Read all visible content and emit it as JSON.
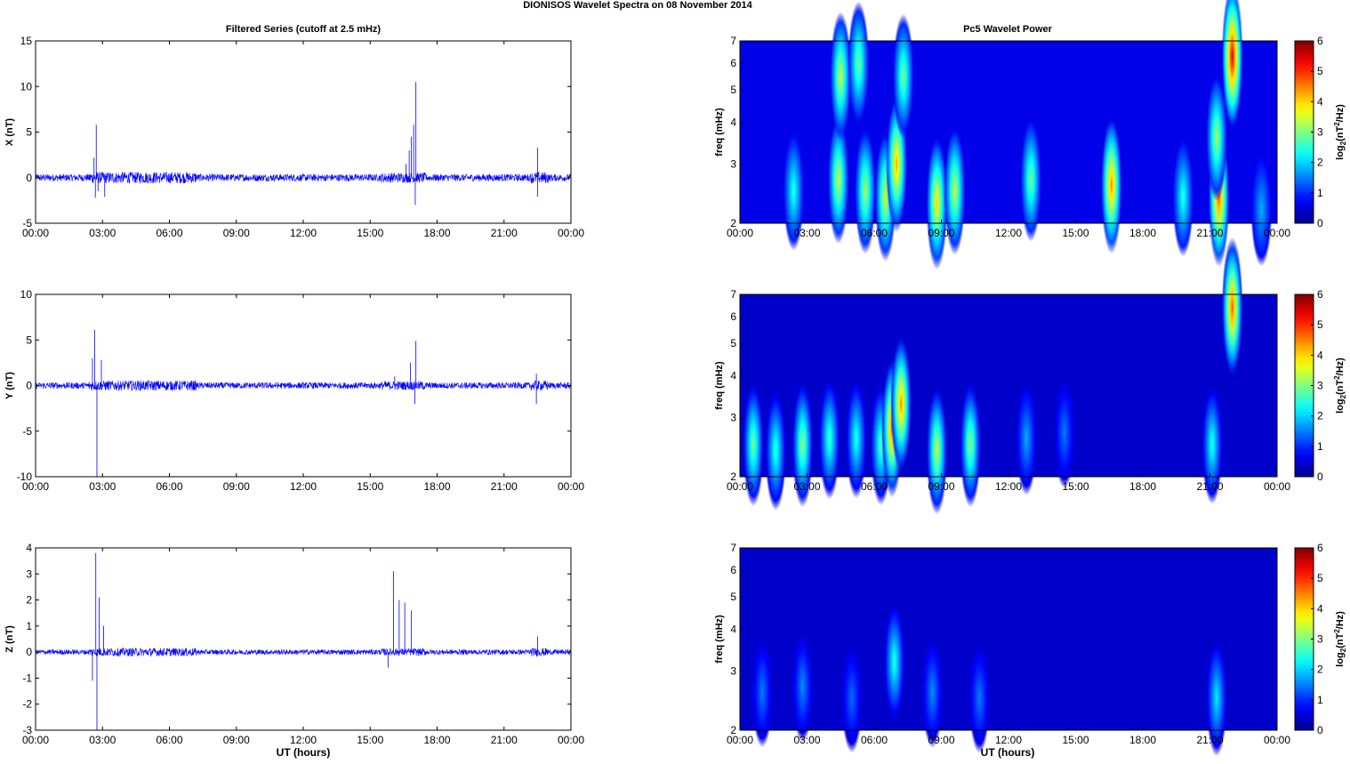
{
  "figure": {
    "title": "DIONISOS Wavelet Spectra on 08 November  2014",
    "left_title": "Filtered Series (cutoff at 2.5 mHz)",
    "right_title": "Pc5 Wavelet Power",
    "x_label": "UT (hours)",
    "colorbar_label": "log2(nT2/Hz)"
  },
  "colors": {
    "trace": "#0000ff",
    "jet": [
      "#00008f",
      "#0000ff",
      "#00ffff",
      "#ffff00",
      "#ff0000",
      "#800000"
    ]
  },
  "chart_data": [
    {
      "type": "line",
      "ylabel": "X (nT)",
      "xlabel": "",
      "xlim": [
        0,
        24
      ],
      "ylim": [
        -5,
        15
      ],
      "x_ticks": [
        "00:00",
        "03:00",
        "06:00",
        "09:00",
        "12:00",
        "15:00",
        "18:00",
        "21:00",
        "00:00"
      ],
      "y_ticks": [
        -5,
        0,
        5,
        10,
        15
      ],
      "baseline_noise": 0.4,
      "spikes": [
        {
          "t": 2.62,
          "v": 2.2
        },
        {
          "t": 2.68,
          "v": -2.2
        },
        {
          "t": 2.72,
          "v": 5.8
        },
        {
          "t": 2.8,
          "v": -1.5
        },
        {
          "t": 3.1,
          "v": -2.1
        },
        {
          "t": 16.6,
          "v": 1.5
        },
        {
          "t": 16.75,
          "v": 3
        },
        {
          "t": 16.85,
          "v": 4.5
        },
        {
          "t": 16.95,
          "v": 5.8
        },
        {
          "t": 17.05,
          "v": 10.5
        },
        {
          "t": 17.02,
          "v": -3
        },
        {
          "t": 22.5,
          "v": 3.3
        },
        {
          "t": 22.5,
          "v": -2.1
        }
      ],
      "series": [
        {
          "values": []
        }
      ]
    },
    {
      "type": "line",
      "ylabel": "Y (nT)",
      "xlabel": "",
      "xlim": [
        0,
        24
      ],
      "ylim": [
        -10,
        10
      ],
      "x_ticks": [
        "00:00",
        "03:00",
        "06:00",
        "09:00",
        "12:00",
        "15:00",
        "18:00",
        "21:00",
        "00:00"
      ],
      "y_ticks": [
        -10,
        -5,
        0,
        5,
        10
      ],
      "baseline_noise": 0.35,
      "spikes": [
        {
          "t": 2.55,
          "v": 3
        },
        {
          "t": 2.65,
          "v": 6.1
        },
        {
          "t": 2.75,
          "v": -10
        },
        {
          "t": 2.95,
          "v": 2.8
        },
        {
          "t": 16.1,
          "v": 1
        },
        {
          "t": 16.8,
          "v": 2.5
        },
        {
          "t": 17.05,
          "v": 4.9
        },
        {
          "t": 17.0,
          "v": -2
        },
        {
          "t": 22.45,
          "v": 1.3
        },
        {
          "t": 22.45,
          "v": -2
        }
      ],
      "series": [
        {
          "values": []
        }
      ]
    },
    {
      "type": "line",
      "ylabel": "Z (nT)",
      "xlabel": "UT (hours)",
      "xlim": [
        0,
        24
      ],
      "ylim": [
        -3,
        4
      ],
      "x_ticks": [
        "00:00",
        "03:00",
        "06:00",
        "09:00",
        "12:00",
        "15:00",
        "18:00",
        "21:00",
        "00:00"
      ],
      "y_ticks": [
        -3,
        -2,
        -1,
        0,
        1,
        2,
        3,
        4
      ],
      "baseline_noise": 0.1,
      "spikes": [
        {
          "t": 2.55,
          "v": -1.1
        },
        {
          "t": 2.7,
          "v": 3.8
        },
        {
          "t": 2.75,
          "v": -3
        },
        {
          "t": 2.85,
          "v": 2.1
        },
        {
          "t": 3.05,
          "v": 1
        },
        {
          "t": 15.8,
          "v": -0.6
        },
        {
          "t": 16.05,
          "v": 3.1
        },
        {
          "t": 16.3,
          "v": 2
        },
        {
          "t": 16.55,
          "v": 1.9
        },
        {
          "t": 16.85,
          "v": 1.6
        },
        {
          "t": 22.5,
          "v": 0.6
        }
      ],
      "series": [
        {
          "values": []
        }
      ]
    },
    {
      "type": "heatmap",
      "ylabel": "freq (mHz)",
      "xlabel": "",
      "xlim": [
        0,
        24
      ],
      "ylim": [
        2,
        7
      ],
      "y_scale": "log",
      "x_ticks": [
        "00:00",
        "03:00",
        "06:00",
        "09:00",
        "12:00",
        "15:00",
        "18:00",
        "21:00",
        "00:00"
      ],
      "y_ticks": [
        2,
        3,
        4,
        5,
        6,
        7
      ],
      "colorbar": {
        "min": 0,
        "max": 6,
        "ticks": [
          0,
          1,
          2,
          3,
          4,
          5,
          6
        ],
        "label": "log2(nT2/Hz)"
      },
      "background_level": 0.6,
      "blobs": [
        {
          "t": 2.4,
          "f": 2.5,
          "level": 2.5
        },
        {
          "t": 4.4,
          "f": 2.7,
          "level": 3.5
        },
        {
          "t": 4.5,
          "f": 5.5,
          "level": 3.5
        },
        {
          "t": 5.3,
          "f": 6.0,
          "level": 3
        },
        {
          "t": 5.6,
          "f": 2.5,
          "level": 3.3
        },
        {
          "t": 6.5,
          "f": 2.4,
          "level": 3.6
        },
        {
          "t": 7.0,
          "f": 3.0,
          "level": 4.3
        },
        {
          "t": 7.3,
          "f": 5.5,
          "level": 3
        },
        {
          "t": 8.8,
          "f": 2.3,
          "level": 4
        },
        {
          "t": 9.6,
          "f": 2.5,
          "level": 3.5
        },
        {
          "t": 13.0,
          "f": 2.7,
          "level": 3
        },
        {
          "t": 16.6,
          "f": 2.6,
          "level": 4.5
        },
        {
          "t": 19.8,
          "f": 2.4,
          "level": 2.5
        },
        {
          "t": 21.4,
          "f": 2.4,
          "level": 4.8
        },
        {
          "t": 21.3,
          "f": 3.6,
          "level": 3.3
        },
        {
          "t": 22.0,
          "f": 6.3,
          "level": 5.5
        },
        {
          "t": 23.3,
          "f": 2.2,
          "level": 1.8
        }
      ]
    },
    {
      "type": "heatmap",
      "ylabel": "freq (mHz)",
      "xlabel": "",
      "xlim": [
        0,
        24
      ],
      "ylim": [
        2,
        7
      ],
      "y_scale": "log",
      "x_ticks": [
        "00:00",
        "03:00",
        "06:00",
        "09:00",
        "12:00",
        "15:00",
        "18:00",
        "21:00",
        "00:00"
      ],
      "y_ticks": [
        2,
        3,
        4,
        5,
        6,
        7
      ],
      "colorbar": {
        "min": 0,
        "max": 6,
        "ticks": [
          0,
          1,
          2,
          3,
          4,
          5,
          6
        ],
        "label": "log2(nT2/Hz)"
      },
      "background_level": 0.4,
      "blobs": [
        {
          "t": 0.6,
          "f": 2.5,
          "level": 3
        },
        {
          "t": 1.6,
          "f": 2.4,
          "level": 2.6
        },
        {
          "t": 2.8,
          "f": 2.5,
          "level": 3.2
        },
        {
          "t": 4.0,
          "f": 2.6,
          "level": 2.7
        },
        {
          "t": 5.2,
          "f": 2.6,
          "level": 2.5
        },
        {
          "t": 6.3,
          "f": 2.5,
          "level": 2.8
        },
        {
          "t": 6.8,
          "f": 2.8,
          "level": 4.7
        },
        {
          "t": 7.2,
          "f": 3.3,
          "level": 4.5
        },
        {
          "t": 8.8,
          "f": 2.4,
          "level": 3.5
        },
        {
          "t": 10.3,
          "f": 2.5,
          "level": 3.2
        },
        {
          "t": 12.8,
          "f": 2.6,
          "level": 1.8
        },
        {
          "t": 14.5,
          "f": 2.7,
          "level": 1.5
        },
        {
          "t": 21.1,
          "f": 2.5,
          "level": 2.5
        },
        {
          "t": 22.0,
          "f": 6.4,
          "level": 4.8
        }
      ]
    },
    {
      "type": "heatmap",
      "ylabel": "freq (mHz)",
      "xlabel": "UT (hours)",
      "xlim": [
        0,
        24
      ],
      "ylim": [
        2,
        7
      ],
      "y_scale": "log",
      "x_ticks": [
        "00:00",
        "03:00",
        "06:00",
        "09:00",
        "12:00",
        "15:00",
        "18:00",
        "21:00",
        "00:00"
      ],
      "y_ticks": [
        2,
        3,
        4,
        5,
        6,
        7
      ],
      "colorbar": {
        "min": 0,
        "max": 6,
        "ticks": [
          0,
          1,
          2,
          3,
          4,
          5,
          6
        ],
        "label": "log2(nT2/Hz)"
      },
      "background_level": 0.4,
      "blobs": [
        {
          "t": 1.0,
          "f": 2.6,
          "level": 1.5
        },
        {
          "t": 2.8,
          "f": 2.7,
          "level": 1.6
        },
        {
          "t": 5.0,
          "f": 2.5,
          "level": 1.4
        },
        {
          "t": 6.9,
          "f": 3.2,
          "level": 2.5
        },
        {
          "t": 8.6,
          "f": 2.6,
          "level": 1.6
        },
        {
          "t": 10.7,
          "f": 2.5,
          "level": 1.5
        },
        {
          "t": 21.3,
          "f": 2.5,
          "level": 2.2
        }
      ]
    }
  ]
}
